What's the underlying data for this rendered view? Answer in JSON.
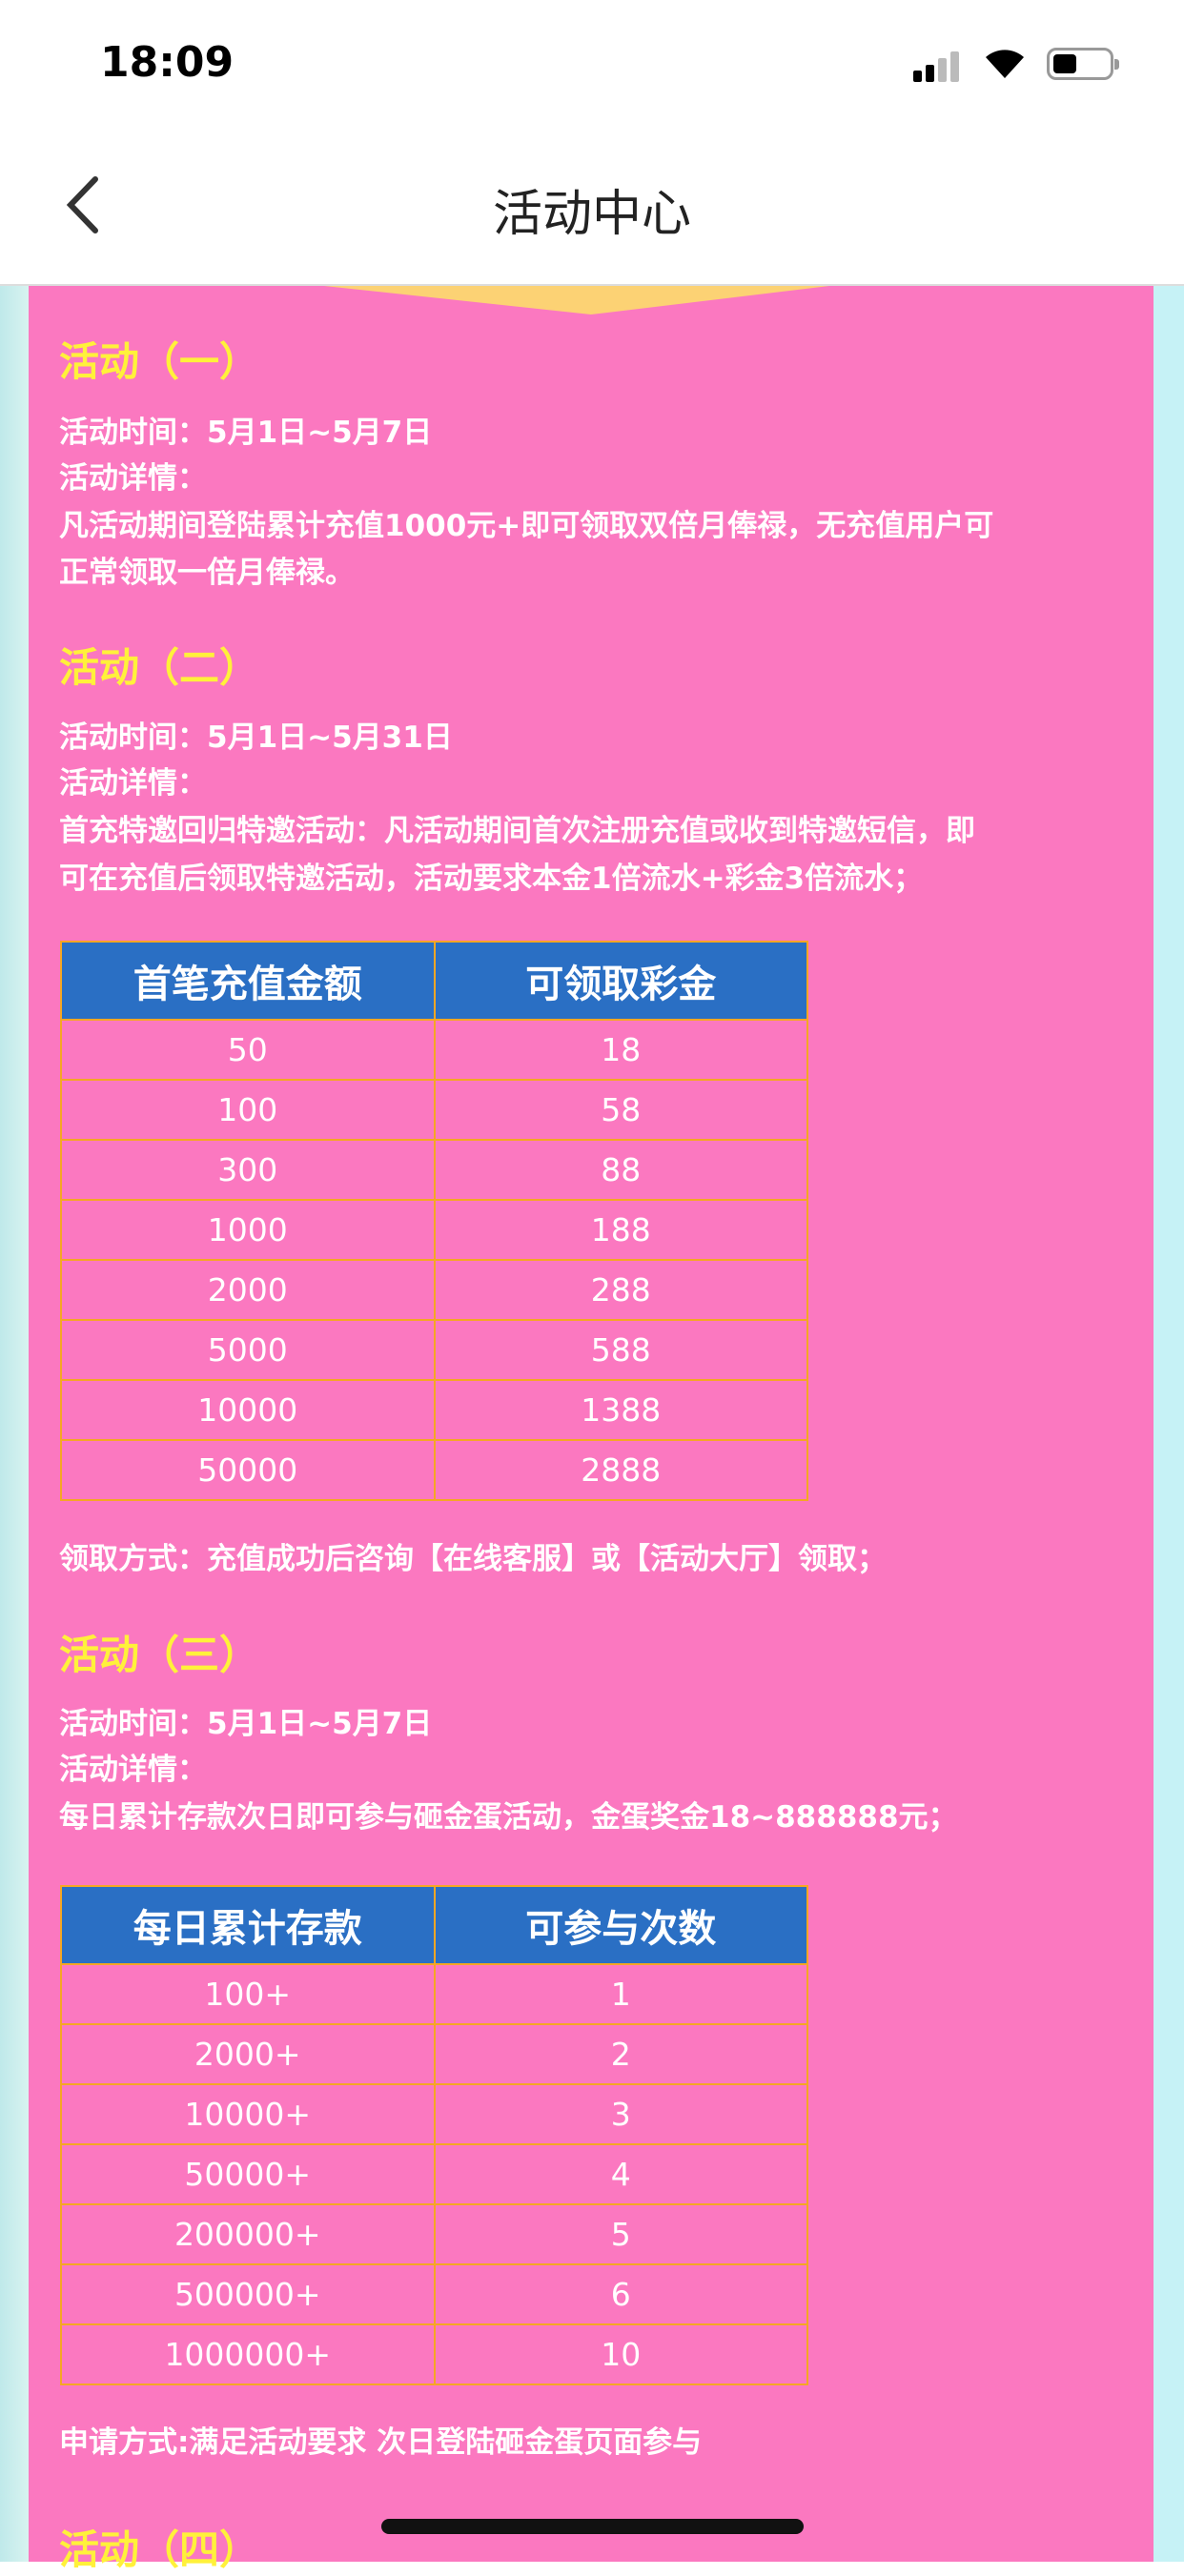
{
  "status_bar": {
    "time": "18:09"
  },
  "nav": {
    "title": "活动中心"
  },
  "colors": {
    "panel": "#fb78c0",
    "heading": "#fff13a",
    "table_header": "#2a6fc4",
    "table_border": "#f5a623"
  },
  "activities": [
    {
      "heading": "活动（一）",
      "time": "活动时间：5月1日~5月7日",
      "detail_label": "活动详情：",
      "detail": [
        "凡活动期间登陆累计充值1000元+即可领取双倍月俸禄，无充值用户可",
        "正常领取一倍月俸禄。"
      ]
    },
    {
      "heading": "活动（二）",
      "time": "活动时间：5月1日~5月31日",
      "detail_label": "活动详情：",
      "detail": [
        "首充特邀回归特邀活动：凡活动期间首次注册充值或收到特邀短信，即",
        "可在充值后领取特邀活动，活动要求本金1倍流水+彩金3倍流水；"
      ],
      "table": {
        "headers": [
          "首笔充值金额",
          "可领取彩金"
        ],
        "rows": [
          [
            "50",
            "18"
          ],
          [
            "100",
            "58"
          ],
          [
            "300",
            "88"
          ],
          [
            "1000",
            "188"
          ],
          [
            "2000",
            "288"
          ],
          [
            "5000",
            "588"
          ],
          [
            "10000",
            "1388"
          ],
          [
            "50000",
            "2888"
          ]
        ]
      },
      "note": "领取方式：充值成功后咨询【在线客服】或【活动大厅】领取；"
    },
    {
      "heading": "活动（三）",
      "time": "活动时间：5月1日~5月7日",
      "detail_label": "活动详情：",
      "detail": [
        "每日累计存款次日即可参与砸金蛋活动，金蛋奖金18~888888元；"
      ],
      "table": {
        "headers": [
          "每日累计存款",
          "可参与次数"
        ],
        "rows": [
          [
            "100+",
            "1"
          ],
          [
            "2000+",
            "2"
          ],
          [
            "10000+",
            "3"
          ],
          [
            "50000+",
            "4"
          ],
          [
            "200000+",
            "5"
          ],
          [
            "500000+",
            "6"
          ],
          [
            "1000000+",
            "10"
          ]
        ]
      },
      "note": "申请方式:满足活动要求 次日登陆砸金蛋页面参与"
    },
    {
      "heading": "活动（四）"
    }
  ]
}
